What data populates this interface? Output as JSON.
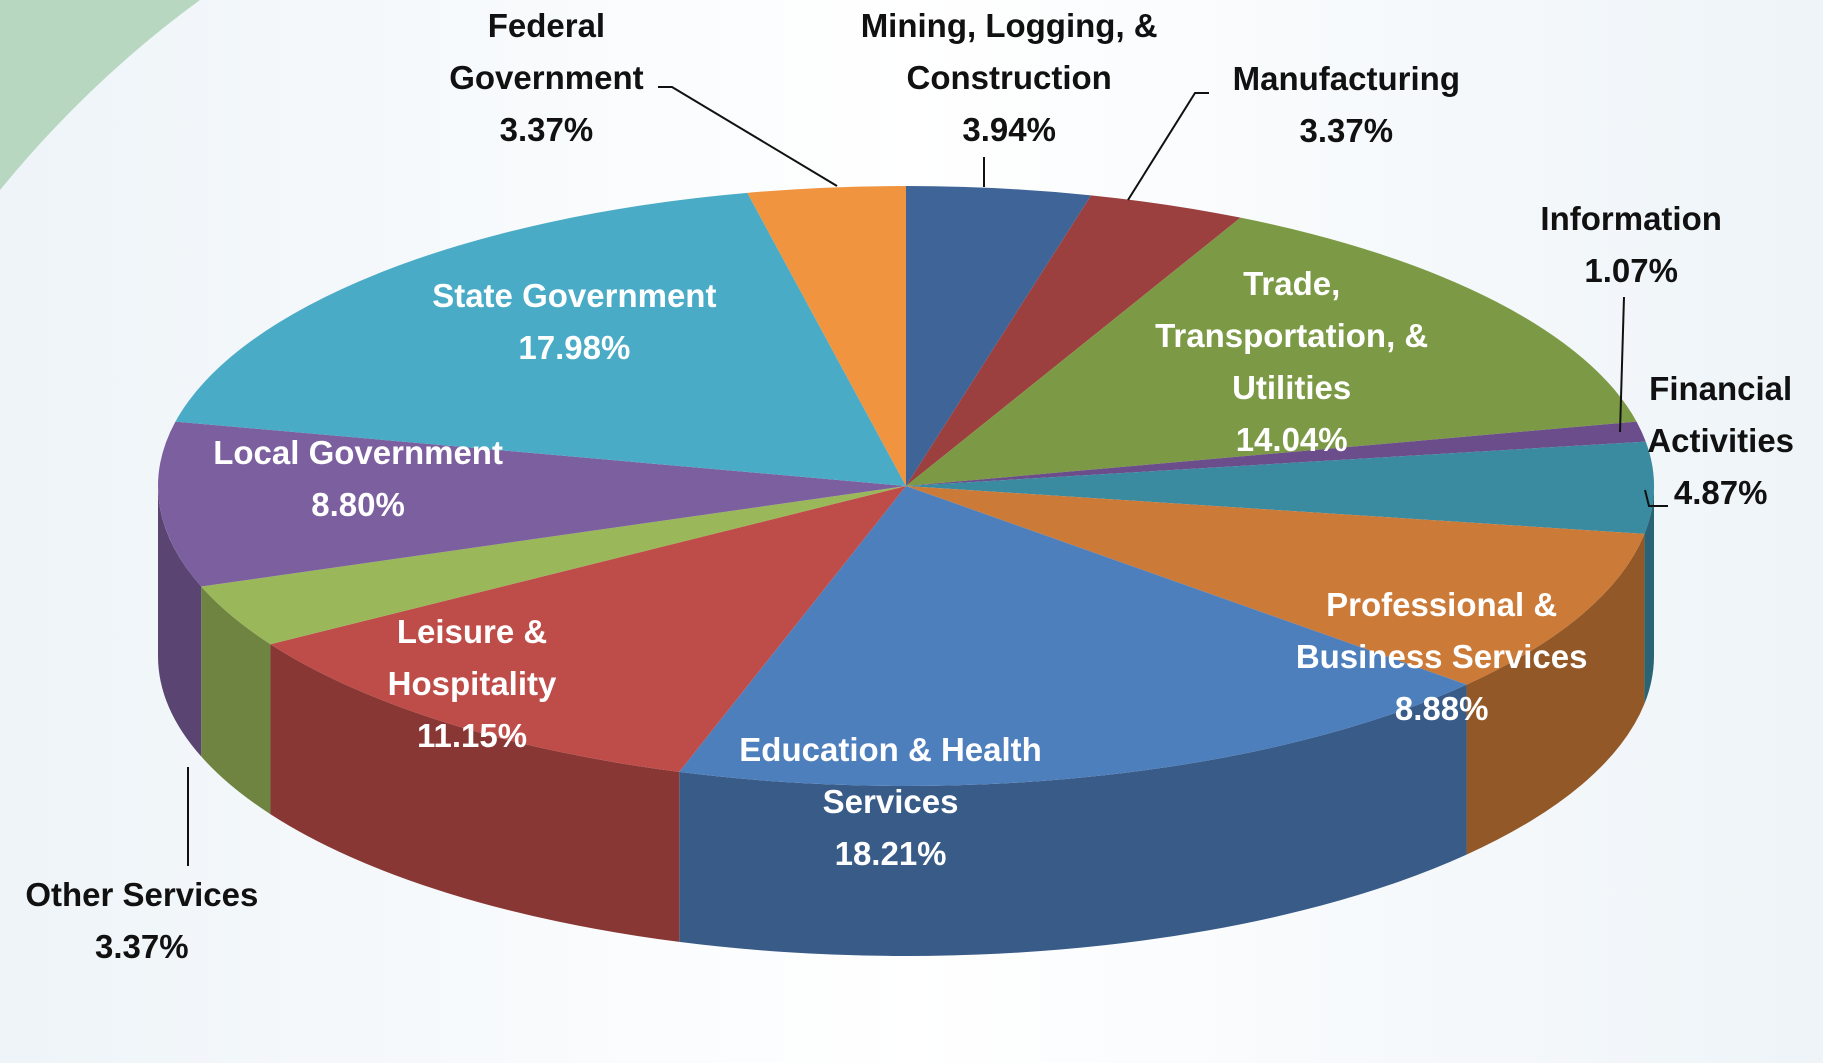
{
  "chart_data": {
    "type": "pie",
    "categories": [
      "Mining, Logging, & Construction",
      "Manufacturing",
      "Trade, Transportation, & Utilities",
      "Information",
      "Financial Activities",
      "Professional & Business Services",
      "Education & Health Services",
      "Leisure & Hospitality",
      "Other Services",
      "Local Government",
      "State Government",
      "Federal Government"
    ],
    "values": [
      3.94,
      3.37,
      14.04,
      1.07,
      4.87,
      8.88,
      18.21,
      11.15,
      3.37,
      8.8,
      17.98,
      3.37
    ],
    "value_labels": [
      "3.94%",
      "3.37%",
      "14.04%",
      "1.07%",
      "4.87%",
      "8.88%",
      "18.21%",
      "11.15%",
      "3.37%",
      "8.80%",
      "17.98%",
      "3.37%"
    ],
    "colors": [
      "#3f6497",
      "#9b3f3f",
      "#7c9a45",
      "#6a4d8a",
      "#3a8aa0",
      "#cc7a38",
      "#4e7fbd",
      "#be4c48",
      "#9ab85a",
      "#7b5f9e",
      "#4aabc6",
      "#f0943f"
    ]
  }
}
